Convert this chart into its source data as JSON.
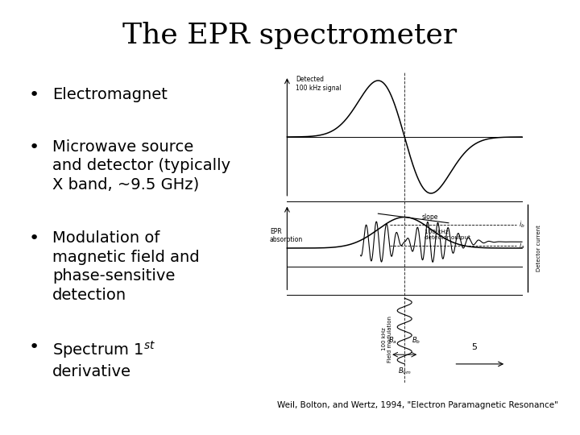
{
  "title": "The EPR spectrometer",
  "title_fontsize": 26,
  "title_font": "DejaVu Serif",
  "background_color": "#ffffff",
  "text_color": "#000000",
  "bullet_points": [
    "Electromagnet",
    "Microwave source\nand detector (typically\nX band, ~9.5 GHz)",
    "Modulation of\nmagnetic field and\nphase-sensitive\ndetection",
    "Spectrum 1$^{st}$\nderivative"
  ],
  "bullet_fontsize": 14,
  "bullet_font": "DejaVu Sans",
  "caption": "Weil, Bolton, and Wertz, 1994, \"Electron Paramagnetic Resonance\"",
  "caption_fontsize": 7.5
}
